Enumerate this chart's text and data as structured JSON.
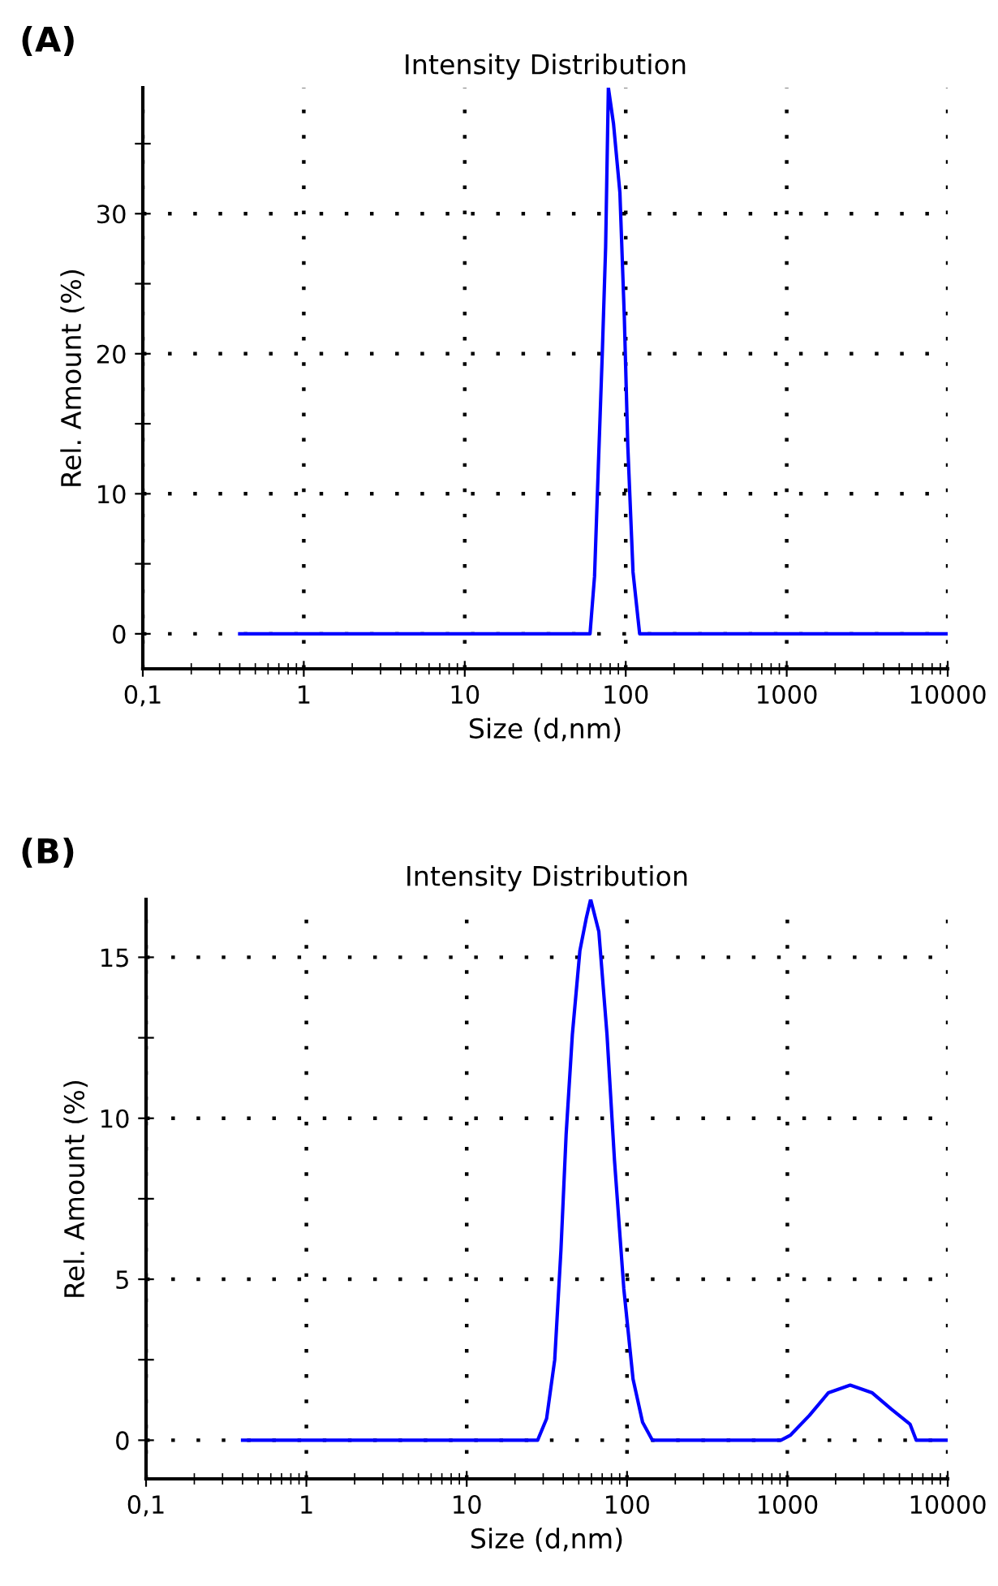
{
  "chart_data": [
    {
      "type": "line",
      "title": "Intensity Distribution",
      "annotations": [
        "(A)"
      ],
      "xlabel": "Size (d,nm)",
      "ylabel": "Rel. Amount (%)",
      "log": "x",
      "grid": true,
      "line_style": "solid",
      "xlim": [
        0.1,
        10000
      ],
      "xticks": [
        {
          "value": 0.1,
          "label": "0,1"
        },
        1,
        10,
        100,
        1000,
        10000
      ],
      "ylim": [
        -2.5,
        39
      ],
      "yticks": [
        0,
        {
          "value": 5,
          "label": null
        },
        10,
        {
          "value": 15,
          "label": null
        },
        20,
        {
          "value": 25,
          "label": null
        },
        30,
        {
          "value": 35,
          "label": null
        }
      ],
      "series": [
        {
          "color": "#0000ff",
          "x": [
            0.4,
            60,
            64,
            67.6,
            71.5,
            75,
            78,
            84,
            92,
            98,
            103,
            111,
            122,
            10000
          ],
          "values": [
            0,
            0,
            4.1,
            12,
            20,
            27.6,
            39,
            36.4,
            31.5,
            22.6,
            13.4,
            4.4,
            0,
            0
          ]
        }
      ]
    },
    {
      "type": "line",
      "title": "Intensity Distribution",
      "annotations": [
        "(B)"
      ],
      "xlabel": "Size (d,nm)",
      "ylabel": "Rel. Amount (%)",
      "log": "x",
      "grid": true,
      "line_style": "solid",
      "xlim": [
        0.1,
        10000
      ],
      "xticks": [
        {
          "value": 0.1,
          "label": "0,1"
        },
        1,
        10,
        100,
        1000,
        10000
      ],
      "ylim": [
        -1.2,
        16.8
      ],
      "yticks": [
        0,
        {
          "value": 2.5,
          "label": null
        },
        5,
        {
          "value": 7.5,
          "label": null
        },
        10,
        {
          "value": 12.5,
          "label": null
        },
        15
      ],
      "series": [
        {
          "color": "#0000ff",
          "x": [
            0.4,
            27.7,
            31.5,
            35.4,
            38.7,
            41.7,
            45.6,
            50.8,
            55.6,
            59.3,
            66.7,
            75,
            83.5,
            95.5,
            109,
            125,
            144,
            912,
            1047,
            1372,
            1799,
            2466,
            3386,
            4437,
            5821,
            6368,
            10000
          ],
          "values": [
            0,
            0,
            0.67,
            2.5,
            5.9,
            9.5,
            12.6,
            15.2,
            16.2,
            16.8,
            15.8,
            12.6,
            8.7,
            4.7,
            1.9,
            0.56,
            0,
            0,
            0.16,
            0.77,
            1.47,
            1.71,
            1.47,
            0.97,
            0.5,
            0,
            0
          ]
        }
      ]
    }
  ]
}
